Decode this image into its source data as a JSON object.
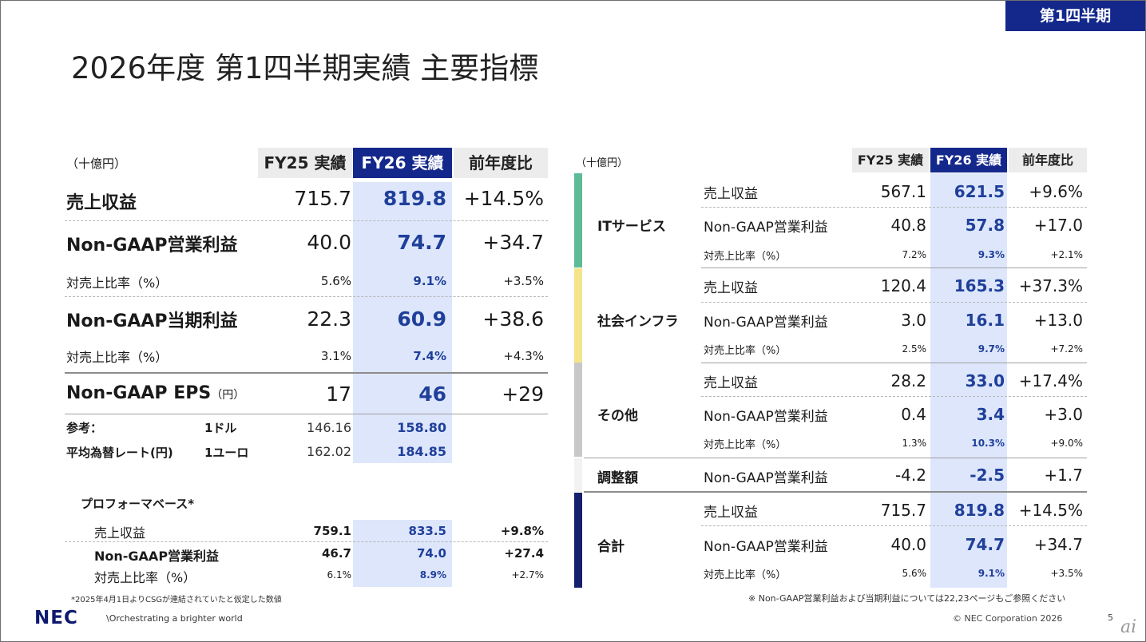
{
  "quarter_tag": "第1四半期",
  "title": "2026年度 第1四半期実績 主要指標",
  "left": {
    "unit": "（十億円）",
    "headers": [
      "FY25 実績",
      "FY26 実績",
      "前年度比"
    ],
    "rows": [
      {
        "label": "売上収益",
        "fy25": "715.7",
        "fy26": "819.8",
        "diff": "+14.5%"
      },
      {
        "label": "Non-GAAP営業利益",
        "fy25": "40.0",
        "fy26": "74.7",
        "diff": "+34.7"
      },
      {
        "label": "対売上比率（%）",
        "fy25": "5.6%",
        "fy26": "9.1%",
        "diff": "+3.5%"
      },
      {
        "label": "Non-GAAP当期利益",
        "fy25": "22.3",
        "fy26": "60.9",
        "diff": "+38.6"
      },
      {
        "label": "対売上比率（%）",
        "fy25": "3.1%",
        "fy26": "7.4%",
        "diff": "+4.3%"
      },
      {
        "label": "Non-GAAP EPS",
        "label_unit": "（円）",
        "fy25": "17",
        "fy26": "46",
        "diff": "+29"
      }
    ],
    "fx": {
      "ref_label": "参考：",
      "rate_label": "平均為替レート(円)",
      "rows": [
        {
          "currency": "1ドル",
          "fy25": "146.16",
          "fy26": "158.80"
        },
        {
          "currency": "1ユーロ",
          "fy25": "162.02",
          "fy26": "184.85"
        }
      ]
    },
    "proforma": {
      "title": "プロフォーマベース*",
      "rows": [
        {
          "label": "売上収益",
          "fy25": "759.1",
          "fy26": "833.5",
          "diff": "+9.8%"
        },
        {
          "label": "Non-GAAP営業利益",
          "fy25": "46.7",
          "fy26": "74.0",
          "diff": "+27.4"
        },
        {
          "label": "対売上比率（%）",
          "fy25": "6.1%",
          "fy26": "8.9%",
          "diff": "+2.7%"
        }
      ],
      "footnote": "*2025年4月1日よりCSGが連結されていたと仮定した数値"
    }
  },
  "right": {
    "unit": "（十億円）",
    "headers": [
      "FY25 実績",
      "FY26 実績",
      "前年度比"
    ],
    "segments": [
      {
        "name": "ITサービス",
        "color": "#5dbb98",
        "rows": [
          {
            "label": "売上収益",
            "fy25": "567.1",
            "fy26": "621.5",
            "diff": "+9.6%"
          },
          {
            "label": "Non-GAAP営業利益",
            "fy25": "40.8",
            "fy26": "57.8",
            "diff": "+17.0"
          },
          {
            "label": "対売上比率（%）",
            "fy25": "7.2%",
            "fy26": "9.3%",
            "diff": "+2.1%"
          }
        ]
      },
      {
        "name": "社会インフラ",
        "color": "#f4e58c",
        "rows": [
          {
            "label": "売上収益",
            "fy25": "120.4",
            "fy26": "165.3",
            "diff": "+37.3%"
          },
          {
            "label": "Non-GAAP営業利益",
            "fy25": "3.0",
            "fy26": "16.1",
            "diff": "+13.0"
          },
          {
            "label": "対売上比率（%）",
            "fy25": "2.5%",
            "fy26": "9.7%",
            "diff": "+7.2%"
          }
        ]
      },
      {
        "name": "その他",
        "color": "#c8c8c8",
        "rows": [
          {
            "label": "売上収益",
            "fy25": "28.2",
            "fy26": "33.0",
            "diff": "+17.4%"
          },
          {
            "label": "Non-GAAP営業利益",
            "fy25": "0.4",
            "fy26": "3.4",
            "diff": "+3.0"
          },
          {
            "label": "対売上比率（%）",
            "fy25": "1.3%",
            "fy26": "10.3%",
            "diff": "+9.0%"
          }
        ]
      },
      {
        "name": "調整額",
        "color": "#f2f2f2",
        "rows": [
          {
            "label": "Non-GAAP営業利益",
            "fy25": "-4.2",
            "fy26": "-2.5",
            "diff": "+1.7"
          }
        ]
      },
      {
        "name": "合計",
        "color": "#14206e",
        "rows": [
          {
            "label": "売上収益",
            "fy25": "715.7",
            "fy26": "819.8",
            "diff": "+14.5%"
          },
          {
            "label": "Non-GAAP営業利益",
            "fy25": "40.0",
            "fy26": "74.7",
            "diff": "+34.7"
          },
          {
            "label": "対売上比率（%）",
            "fy25": "5.6%",
            "fy26": "9.1%",
            "diff": "+3.5%"
          }
        ]
      }
    ],
    "footnote": "※ Non-GAAP営業利益および当期利益については22,23ページもご参照ください"
  },
  "footer": {
    "logo": "NEC",
    "tagline": "\\Orchestrating a brighter world",
    "copyright": "© NEC Corporation 2026",
    "page": "5",
    "watermark": "ai"
  }
}
